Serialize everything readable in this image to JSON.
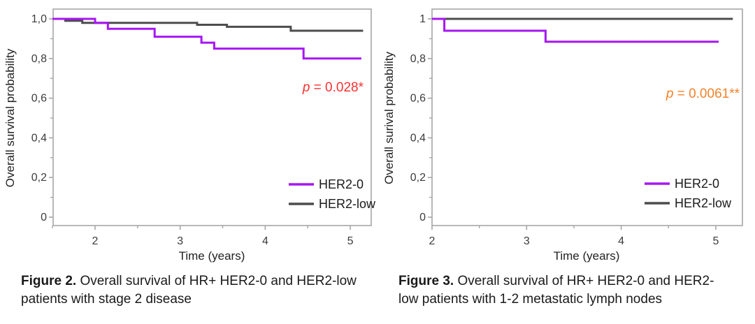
{
  "figures": [
    {
      "caption_bold": "Figure 2.",
      "caption_text": " Overall survival of HR+ HER2-0 and HER2-low patients with stage 2 disease"
    },
    {
      "caption_bold": "Figure 3.",
      "caption_text": " Overall survival of HR+ HER2-0 and HER2-low patients with 1-2 metastatic lymph nodes"
    }
  ],
  "chart_data": [
    {
      "type": "line",
      "subtype": "kaplan-meier-step",
      "title": "",
      "xlabel": "Time (years)",
      "ylabel": "Overall survival probability",
      "xlim": [
        1.5,
        5.25
      ],
      "ylim": [
        0,
        1.05
      ],
      "grid": false,
      "legend_position": "lower-right",
      "xticks": {
        "major": [
          2,
          3,
          4,
          5
        ],
        "labels": [
          "2",
          "3",
          "4",
          "5"
        ],
        "minor": [
          1.5,
          2.5,
          3.5,
          4.5
        ]
      },
      "yticks": {
        "major": [
          0,
          0.2,
          0.4,
          0.6,
          0.8,
          1.0
        ],
        "labels": [
          "0",
          "0,2",
          "0,4",
          "0,6",
          "0,8",
          "1,0"
        ],
        "minor": [
          0.1,
          0.3,
          0.5,
          0.7,
          0.9
        ]
      },
      "series": [
        {
          "name": "HER2-0",
          "color": "#A716F2",
          "end_time": 5.13,
          "points": [
            [
              1.5,
              1.0
            ],
            [
              2.0,
              0.98
            ],
            [
              2.15,
              0.95
            ],
            [
              2.7,
              0.91
            ],
            [
              3.25,
              0.88
            ],
            [
              3.4,
              0.85
            ],
            [
              4.45,
              0.8
            ]
          ]
        },
        {
          "name": "HER2-low",
          "color": "#4D4D4D",
          "end_time": 5.15,
          "points": [
            [
              1.5,
              1.0
            ],
            [
              1.65,
              0.99
            ],
            [
              1.85,
              0.98
            ],
            [
              3.2,
              0.97
            ],
            [
              3.55,
              0.96
            ],
            [
              4.3,
              0.94
            ]
          ]
        }
      ],
      "annotation": {
        "italic": "p",
        "text": " = 0.028*",
        "color": "#FB3131"
      }
    },
    {
      "type": "line",
      "subtype": "kaplan-meier-step",
      "title": "",
      "xlabel": "Time (years)",
      "ylabel": "Overall surival probability",
      "xlim": [
        2,
        5.28
      ],
      "ylim": [
        0,
        1.05
      ],
      "grid": false,
      "legend_position": "lower-right",
      "xticks": {
        "major": [
          2,
          3,
          4,
          5
        ],
        "labels": [
          "2",
          "3",
          "4",
          "5"
        ],
        "minor": [
          2.5,
          3.5,
          4.5
        ]
      },
      "yticks": {
        "major": [
          0,
          0.2,
          0.4,
          0.6,
          0.8,
          1.0
        ],
        "labels": [
          "0",
          "0,2",
          "0,4",
          "0,6",
          "0,8",
          "1"
        ],
        "minor": [
          0.1,
          0.3,
          0.5,
          0.7,
          0.9
        ]
      },
      "series": [
        {
          "name": "HER2-0",
          "color": "#A716F2",
          "end_time": 5.03,
          "points": [
            [
              2.0,
              1.0
            ],
            [
              2.13,
              0.94
            ],
            [
              3.2,
              0.885
            ]
          ]
        },
        {
          "name": "HER2-low",
          "color": "#4D4D4D",
          "end_time": 5.18,
          "points": [
            [
              2.0,
              1.0
            ]
          ]
        }
      ],
      "annotation": {
        "italic": "p",
        "text": " = 0.0061**",
        "color": "#F5822A"
      }
    }
  ],
  "style": {
    "axis_color": "#A6A6A6",
    "tick_text_color": "#3C3C3C",
    "axis_title_color": "#222222"
  }
}
